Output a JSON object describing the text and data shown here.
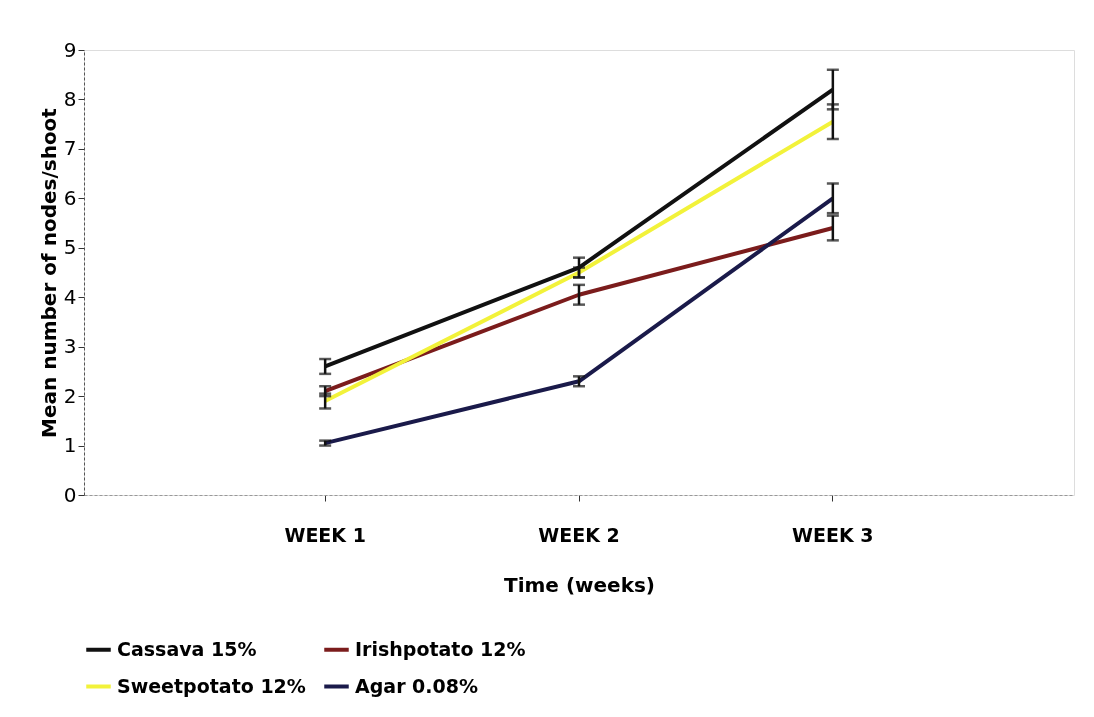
{
  "chart_data": {
    "type": "line",
    "xlabel": "Time (weeks)",
    "ylabel": "Mean number of nodes/shoot",
    "categories": [
      "WEEK 1",
      "WEEK 2",
      "WEEK 3"
    ],
    "series": [
      {
        "name": "Cassava 15%",
        "color": "#111111",
        "values": [
          2.6,
          4.6,
          8.2
        ],
        "errors": [
          0.15,
          0.2,
          0.4
        ]
      },
      {
        "name": "Irishpotato 12%",
        "color": "#7b1c1c",
        "values": [
          2.1,
          4.05,
          5.4
        ],
        "errors": [
          0.1,
          0.2,
          0.25
        ]
      },
      {
        "name": "Sweetpotato 12%",
        "color": "#f2f23a",
        "values": [
          1.9,
          4.5,
          7.55
        ],
        "errors": [
          0.15,
          0.1,
          0.35
        ]
      },
      {
        "name": "Agar  0.08%",
        "color": "#1a1a4a",
        "values": [
          1.05,
          2.3,
          6.0
        ],
        "errors": [
          0.05,
          0.1,
          0.3
        ]
      }
    ],
    "ylim": [
      0,
      9
    ],
    "yticks": [
      0,
      1,
      2,
      3,
      4,
      5,
      6,
      7,
      8,
      9
    ],
    "grid": false,
    "legend": "bottom",
    "marker": "none",
    "line_style": "solid"
  }
}
